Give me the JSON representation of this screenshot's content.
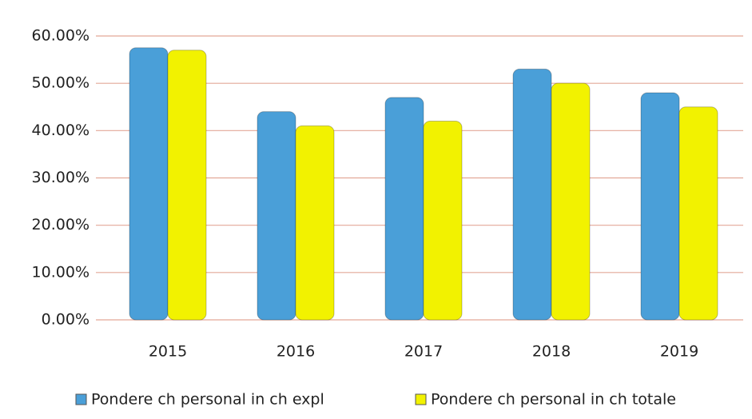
{
  "chart_data": {
    "type": "bar",
    "categories": [
      "2015",
      "2016",
      "2017",
      "2018",
      "2019"
    ],
    "series": [
      {
        "name": "Pondere ch personal in ch expl",
        "color": "#4a9fd8",
        "values": [
          57.5,
          44,
          47,
          53,
          48
        ]
      },
      {
        "name": "Pondere ch personal in ch totale",
        "color": "#f2f200",
        "values": [
          57,
          41,
          42,
          50,
          45
        ]
      }
    ],
    "ylim": [
      0,
      60
    ],
    "yticks": [
      {
        "value": 0,
        "label": "0.00%"
      },
      {
        "value": 10,
        "label": "10.00%"
      },
      {
        "value": 20,
        "label": "20.00%"
      },
      {
        "value": 30,
        "label": "30.00%"
      },
      {
        "value": 40,
        "label": "40.00%"
      },
      {
        "value": 50,
        "label": "50.00%"
      },
      {
        "value": 60,
        "label": "60.00%"
      }
    ],
    "grid": true,
    "legend": "bottom"
  }
}
